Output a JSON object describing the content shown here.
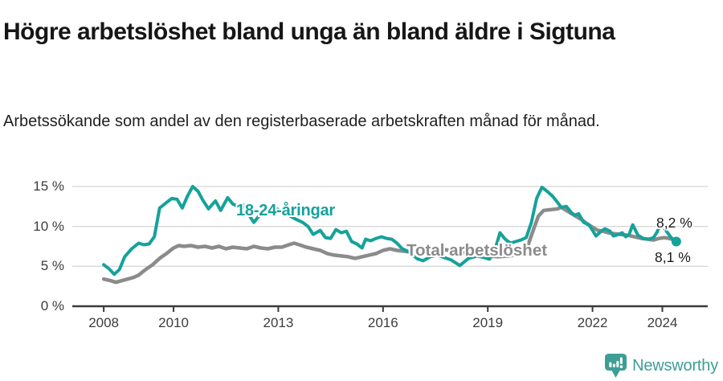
{
  "header": {
    "title": "Högre arbetslöshet bland unga än bland äldre i Sigtuna",
    "subtitle": "Arbetssökande som andel av den registerbaserade arbetskraften månad för månad."
  },
  "footer": {
    "brand": "Newsworthy",
    "brand_color": "#3d9e96"
  },
  "chart_data": {
    "type": "line",
    "title": "Högre arbetslöshet bland unga än bland äldre i Sigtuna",
    "subtitle": "Arbetssökande som andel av den registerbaserade arbetskraften månad för månad.",
    "xlim": [
      2007.1,
      2025.3
    ],
    "ylim": [
      0,
      15
    ],
    "grid": "horizontal",
    "legend_position": "inline-labels",
    "yticks": [
      0,
      5,
      10,
      15
    ],
    "ytick_labels": [
      "0 %",
      "5 %",
      "10 %",
      "15 %"
    ],
    "xticks": [
      2008,
      2010,
      2013,
      2016,
      2019,
      2022,
      2024
    ],
    "xtick_labels": [
      "2008",
      "2010",
      "2013",
      "2016",
      "2019",
      "2022",
      "2024"
    ],
    "colors": {
      "grid": "#d8d8d8",
      "axis": "#3a3a3a",
      "youth": "#15a29a",
      "total": "#8b8b8b"
    },
    "series": [
      {
        "id": "youth",
        "name": "18-24-åringar",
        "color": "#15a29a",
        "width": 4,
        "points": [
          [
            2008,
            5.2
          ],
          [
            2008.15,
            4.7
          ],
          [
            2008.3,
            4.0
          ],
          [
            2008.45,
            4.6
          ],
          [
            2008.6,
            6.2
          ],
          [
            2008.8,
            7.2
          ],
          [
            2009,
            7.9
          ],
          [
            2009.15,
            7.7
          ],
          [
            2009.3,
            7.8
          ],
          [
            2009.45,
            8.7
          ],
          [
            2009.6,
            12.3
          ],
          [
            2009.8,
            13.0
          ],
          [
            2009.95,
            13.5
          ],
          [
            2010.1,
            13.4
          ],
          [
            2010.25,
            12.3
          ],
          [
            2010.4,
            13.8
          ],
          [
            2010.55,
            15.0
          ],
          [
            2010.7,
            14.4
          ],
          [
            2010.85,
            13.2
          ],
          [
            2011,
            12.2
          ],
          [
            2011.2,
            13.2
          ],
          [
            2011.35,
            12.0
          ],
          [
            2011.55,
            13.6
          ],
          [
            2011.7,
            12.8
          ],
          [
            2011.85,
            12.5
          ],
          [
            2012,
            12.7
          ],
          [
            2012.15,
            11.5
          ],
          [
            2012.3,
            10.5
          ],
          [
            2012.5,
            11.6
          ],
          [
            2012.7,
            12.1
          ],
          [
            2012.9,
            12.3
          ],
          [
            2013.1,
            11.9
          ],
          [
            2013.3,
            11.4
          ],
          [
            2013.5,
            10.9
          ],
          [
            2013.7,
            10.5
          ],
          [
            2013.85,
            10.0
          ],
          [
            2014,
            9.0
          ],
          [
            2014.2,
            9.5
          ],
          [
            2014.35,
            8.6
          ],
          [
            2014.5,
            8.5
          ],
          [
            2014.65,
            9.6
          ],
          [
            2014.8,
            9.2
          ],
          [
            2014.95,
            9.4
          ],
          [
            2015.1,
            8.1
          ],
          [
            2015.25,
            7.8
          ],
          [
            2015.4,
            7.3
          ],
          [
            2015.5,
            8.4
          ],
          [
            2015.65,
            8.2
          ],
          [
            2015.8,
            8.5
          ],
          [
            2015.95,
            8.7
          ],
          [
            2016.1,
            8.5
          ],
          [
            2016.25,
            8.4
          ],
          [
            2016.4,
            7.9
          ],
          [
            2016.55,
            7.2
          ],
          [
            2016.7,
            6.9
          ],
          [
            2016.85,
            6.4
          ],
          [
            2017,
            5.9
          ],
          [
            2017.15,
            5.7
          ],
          [
            2017.35,
            6.2
          ],
          [
            2017.55,
            6.4
          ],
          [
            2017.75,
            6.1
          ],
          [
            2017.95,
            5.8
          ],
          [
            2018.2,
            5.1
          ],
          [
            2018.45,
            6.0
          ],
          [
            2018.7,
            6.3
          ],
          [
            2018.9,
            6.1
          ],
          [
            2019.05,
            5.9
          ],
          [
            2019.2,
            7.0
          ],
          [
            2019.35,
            9.2
          ],
          [
            2019.5,
            8.4
          ],
          [
            2019.65,
            7.9
          ],
          [
            2019.8,
            8.1
          ],
          [
            2019.95,
            8.3
          ],
          [
            2020.1,
            8.6
          ],
          [
            2020.25,
            10.5
          ],
          [
            2020.4,
            13.5
          ],
          [
            2020.55,
            14.9
          ],
          [
            2020.7,
            14.4
          ],
          [
            2020.85,
            13.8
          ],
          [
            2021,
            13.0
          ],
          [
            2021.1,
            12.4
          ],
          [
            2021.25,
            12.5
          ],
          [
            2021.4,
            11.7
          ],
          [
            2021.5,
            11.4
          ],
          [
            2021.6,
            11.6
          ],
          [
            2021.75,
            10.5
          ],
          [
            2021.9,
            10.2
          ],
          [
            2022,
            9.5
          ],
          [
            2022.1,
            8.8
          ],
          [
            2022.25,
            9.4
          ],
          [
            2022.35,
            9.7
          ],
          [
            2022.5,
            9.4
          ],
          [
            2022.6,
            8.8
          ],
          [
            2022.75,
            9.0
          ],
          [
            2022.85,
            9.2
          ],
          [
            2022.95,
            8.7
          ],
          [
            2023.05,
            9.0
          ],
          [
            2023.15,
            10.2
          ],
          [
            2023.3,
            8.9
          ],
          [
            2023.45,
            8.5
          ],
          [
            2023.6,
            8.4
          ],
          [
            2023.75,
            8.6
          ],
          [
            2023.85,
            9.3
          ],
          [
            2023.95,
            10.4
          ],
          [
            2024.1,
            9.5
          ],
          [
            2024.25,
            8.6
          ],
          [
            2024.4,
            8.1
          ]
        ]
      },
      {
        "id": "total",
        "name": "Total arbetslöshet",
        "color": "#8b8b8b",
        "width": 4.5,
        "points": [
          [
            2008,
            3.4
          ],
          [
            2008.2,
            3.2
          ],
          [
            2008.35,
            3.0
          ],
          [
            2008.6,
            3.3
          ],
          [
            2008.85,
            3.6
          ],
          [
            2009,
            3.9
          ],
          [
            2009.2,
            4.6
          ],
          [
            2009.4,
            5.2
          ],
          [
            2009.6,
            6.0
          ],
          [
            2009.8,
            6.6
          ],
          [
            2010,
            7.3
          ],
          [
            2010.15,
            7.6
          ],
          [
            2010.3,
            7.5
          ],
          [
            2010.5,
            7.6
          ],
          [
            2010.7,
            7.4
          ],
          [
            2010.9,
            7.5
          ],
          [
            2011.1,
            7.3
          ],
          [
            2011.3,
            7.5
          ],
          [
            2011.5,
            7.2
          ],
          [
            2011.7,
            7.4
          ],
          [
            2011.9,
            7.3
          ],
          [
            2012.1,
            7.2
          ],
          [
            2012.3,
            7.5
          ],
          [
            2012.5,
            7.3
          ],
          [
            2012.7,
            7.2
          ],
          [
            2012.9,
            7.4
          ],
          [
            2013.1,
            7.4
          ],
          [
            2013.3,
            7.7
          ],
          [
            2013.45,
            7.9
          ],
          [
            2013.6,
            7.7
          ],
          [
            2013.8,
            7.4
          ],
          [
            2014,
            7.2
          ],
          [
            2014.2,
            7.0
          ],
          [
            2014.4,
            6.6
          ],
          [
            2014.6,
            6.4
          ],
          [
            2014.8,
            6.3
          ],
          [
            2015,
            6.2
          ],
          [
            2015.2,
            6.0
          ],
          [
            2015.4,
            6.2
          ],
          [
            2015.6,
            6.4
          ],
          [
            2015.8,
            6.6
          ],
          [
            2016,
            7.0
          ],
          [
            2016.2,
            7.2
          ],
          [
            2016.4,
            7.0
          ],
          [
            2016.6,
            6.9
          ],
          [
            2016.8,
            6.8
          ],
          [
            2017,
            6.9
          ],
          [
            2017.3,
            7.1
          ],
          [
            2017.6,
            7.2
          ],
          [
            2017.9,
            7.0
          ],
          [
            2018.2,
            6.8
          ],
          [
            2018.5,
            6.6
          ],
          [
            2018.8,
            6.4
          ],
          [
            2019,
            6.3
          ],
          [
            2019.3,
            6.2
          ],
          [
            2019.6,
            6.3
          ],
          [
            2019.9,
            6.5
          ],
          [
            2020.1,
            7.0
          ],
          [
            2020.3,
            9.5
          ],
          [
            2020.45,
            11.3
          ],
          [
            2020.6,
            12.0
          ],
          [
            2020.8,
            12.1
          ],
          [
            2021,
            12.2
          ],
          [
            2021.1,
            12.4
          ],
          [
            2021.25,
            12.0
          ],
          [
            2021.4,
            11.6
          ],
          [
            2021.55,
            11.2
          ],
          [
            2021.7,
            10.8
          ],
          [
            2021.85,
            10.3
          ],
          [
            2022,
            9.9
          ],
          [
            2022.15,
            9.5
          ],
          [
            2022.3,
            9.4
          ],
          [
            2022.45,
            9.2
          ],
          [
            2022.6,
            9.1
          ],
          [
            2022.8,
            9.0
          ],
          [
            2023,
            8.9
          ],
          [
            2023.2,
            8.7
          ],
          [
            2023.4,
            8.5
          ],
          [
            2023.6,
            8.4
          ],
          [
            2023.75,
            8.3
          ],
          [
            2023.9,
            8.5
          ],
          [
            2024.05,
            8.6
          ],
          [
            2024.2,
            8.5
          ],
          [
            2024.4,
            8.2
          ]
        ]
      }
    ],
    "end_marker": {
      "series": "youth",
      "x": 2024.4,
      "value": 8.1
    },
    "annotations": {
      "total_end_label": "8,2 %",
      "youth_end_label": "8,1 %"
    }
  }
}
